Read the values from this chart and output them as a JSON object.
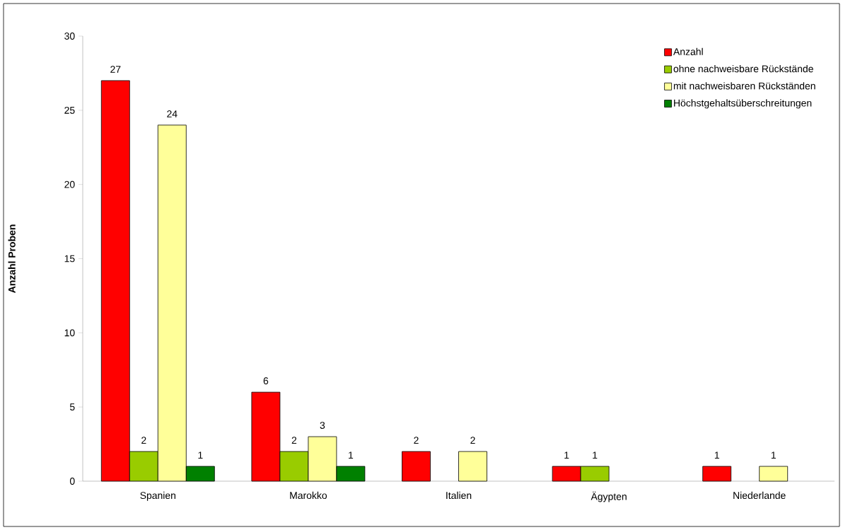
{
  "chart_data": {
    "type": "bar",
    "ylabel": "Anzahl Proben",
    "categories": [
      "Spanien",
      "Marokko",
      "Italien",
      "Ägypten",
      "Niederlande"
    ],
    "series": [
      {
        "name": "Anzahl",
        "color": "#ff0000",
        "values": [
          27,
          6,
          2,
          1,
          1
        ]
      },
      {
        "name": "ohne nachweisbare Rückstände",
        "color": "#99cc00",
        "values": [
          2,
          2,
          null,
          1,
          null
        ]
      },
      {
        "name": "mit nachweisbaren Rückständen",
        "color": "#ffff99",
        "values": [
          24,
          3,
          2,
          null,
          1
        ]
      },
      {
        "name": "Höchstgehaltsüberschreitungen",
        "color": "#008000",
        "values": [
          1,
          1,
          null,
          null,
          null
        ]
      }
    ],
    "ylim": [
      0,
      30
    ],
    "yticks": [
      0,
      5,
      10,
      15,
      20,
      25,
      30
    ],
    "data_labels": true,
    "legend": "top right",
    "grid": false
  }
}
